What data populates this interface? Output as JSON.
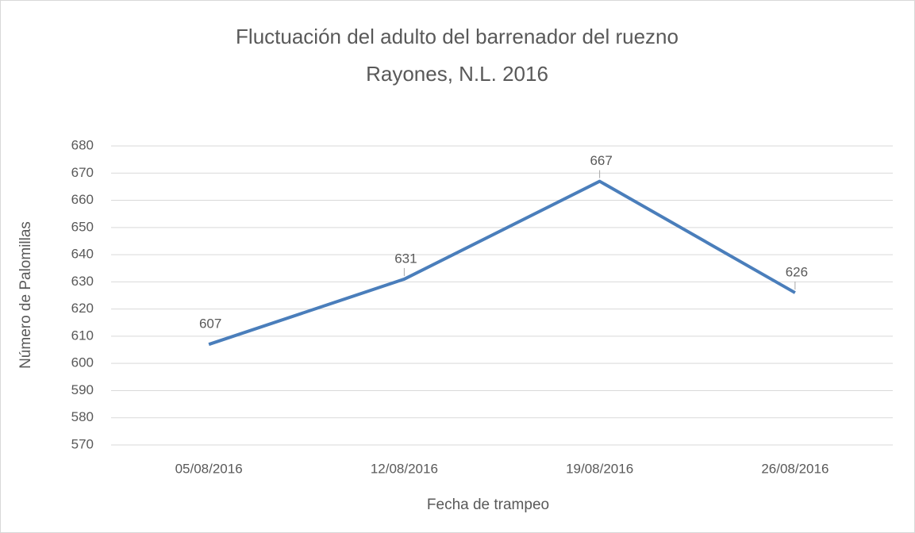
{
  "chart_data": {
    "type": "line",
    "title": "Fluctuación del adulto del barrenador del ruezno",
    "subtitle": "Rayones, N.L. 2016",
    "x_label": "Fecha de trampeo",
    "y_label": "Número de Palomillas",
    "categories": [
      "05/08/2016",
      "12/08/2016",
      "19/08/2016",
      "26/08/2016"
    ],
    "series": [
      {
        "name": "Palomillas",
        "color": "#4a7ebb",
        "values": [
          607,
          631,
          667,
          626
        ]
      }
    ],
    "ylim": [
      570,
      680
    ],
    "yticks": [
      570,
      580,
      590,
      600,
      610,
      620,
      630,
      640,
      650,
      660,
      670,
      680
    ],
    "grid": true
  }
}
